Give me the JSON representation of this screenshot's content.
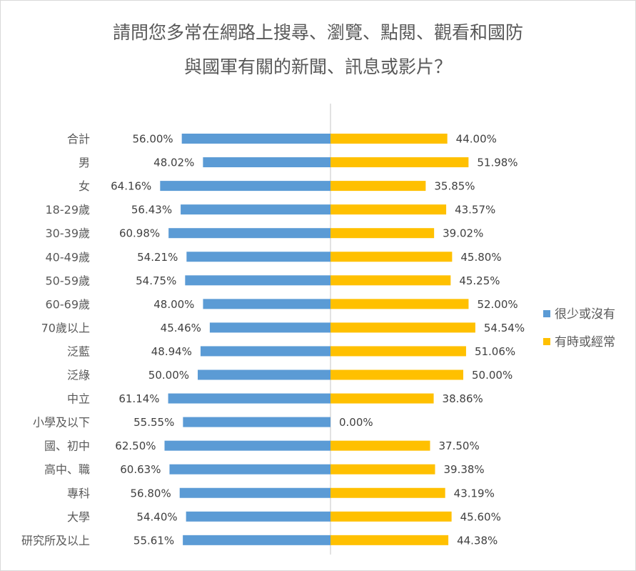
{
  "chart_data": {
    "type": "bar",
    "title_lines": [
      "請問您多常在網路上搜尋、瀏覽、點閱、觀看和國防",
      "與國軍有關的新聞、訊息或影片？"
    ],
    "categories": [
      "合計",
      "男",
      "女",
      "18-29歲",
      "30-39歲",
      "40-49歲",
      "50-59歲",
      "60-69歲",
      "70歲以上",
      "泛藍",
      "泛綠",
      "中立",
      "小學及以下",
      "國、初中",
      "高中、職",
      "專科",
      "大學",
      "研究所及以上"
    ],
    "series": [
      {
        "name": "很少或沒有",
        "color": "#5b9bd5",
        "direction": "left",
        "values": [
          56.0,
          48.02,
          64.16,
          56.43,
          60.98,
          54.21,
          54.75,
          48.0,
          45.46,
          48.94,
          50.0,
          61.14,
          55.55,
          62.5,
          60.63,
          56.8,
          54.4,
          55.61
        ],
        "labels": [
          "56.00%",
          "48.02%",
          "64.16%",
          "56.43%",
          "60.98%",
          "54.21%",
          "54.75%",
          "48.00%",
          "45.46%",
          "48.94%",
          "50.00%",
          "61.14%",
          "55.55%",
          "62.50%",
          "60.63%",
          "56.80%",
          "54.40%",
          "55.61%"
        ]
      },
      {
        "name": "有時或經常",
        "color": "#ffc000",
        "direction": "right",
        "values": [
          44.0,
          51.98,
          35.85,
          43.57,
          39.02,
          45.8,
          45.25,
          52.0,
          54.54,
          51.06,
          50.0,
          38.86,
          0.0,
          37.5,
          39.38,
          43.19,
          45.6,
          44.38
        ],
        "labels": [
          "44.00%",
          "51.98%",
          "35.85%",
          "43.57%",
          "39.02%",
          "45.80%",
          "45.25%",
          "52.00%",
          "54.54%",
          "51.06%",
          "50.00%",
          "38.86%",
          "0.00%",
          "37.50%",
          "39.38%",
          "43.19%",
          "45.60%",
          "44.38%"
        ]
      }
    ],
    "legend_position": "right",
    "grid": false
  }
}
